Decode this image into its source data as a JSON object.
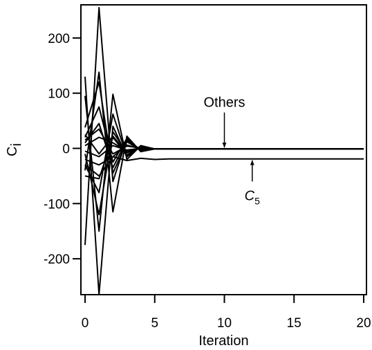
{
  "chart_data": {
    "type": "line",
    "title": "",
    "xlabel": "Iteration",
    "ylabel": "C",
    "ylabel_sub": "i",
    "xlim": [
      -0.3,
      20.2
    ],
    "ylim": [
      -265,
      260
    ],
    "xticks": [
      0,
      5,
      10,
      15,
      20
    ],
    "yticks": [
      -200,
      -100,
      0,
      100,
      200
    ],
    "grid": false,
    "legend": "none",
    "line_color": "#000000",
    "series": [
      {
        "x": [
          0,
          1,
          2,
          3,
          4,
          5,
          20
        ],
        "y": [
          -175,
          255,
          -60,
          18,
          -4,
          -1,
          -1
        ]
      },
      {
        "x": [
          0,
          1,
          2,
          3,
          4,
          5,
          20
        ],
        "y": [
          130,
          -265,
          40,
          -15,
          3,
          -1,
          -1
        ]
      },
      {
        "x": [
          0,
          1,
          2,
          3,
          4,
          5,
          20
        ],
        "y": [
          -40,
          138,
          -115,
          22,
          -6,
          -1,
          -1
        ]
      },
      {
        "x": [
          0,
          1,
          2,
          3,
          4,
          5,
          20
        ],
        "y": [
          95,
          -150,
          98,
          -20,
          5,
          -1,
          -1
        ]
      },
      {
        "x": [
          0,
          1,
          2,
          3,
          4,
          5,
          20
        ],
        "y": [
          38,
          120,
          -45,
          12,
          -3,
          -1,
          -1
        ]
      },
      {
        "x": [
          0,
          1,
          2,
          3,
          4,
          5,
          20
        ],
        "y": [
          -30,
          -80,
          62,
          -15,
          4,
          -1,
          -1
        ]
      },
      {
        "x": [
          0,
          1,
          2,
          3,
          4,
          5,
          20
        ],
        "y": [
          20,
          75,
          -25,
          18,
          -4,
          -1,
          -1
        ]
      },
      {
        "x": [
          0,
          1,
          2,
          3,
          4,
          5,
          20
        ],
        "y": [
          -10,
          -120,
          30,
          -8,
          2,
          -1,
          -1
        ]
      },
      {
        "x": [
          0,
          1,
          2,
          3,
          4,
          5,
          20
        ],
        "y": [
          10,
          45,
          -35,
          15,
          -3,
          -1,
          -1
        ]
      },
      {
        "x": [
          0,
          1,
          2,
          3,
          4,
          5,
          20
        ],
        "y": [
          -50,
          -55,
          20,
          -12,
          3,
          -1,
          -1
        ]
      },
      {
        "x": [
          0,
          1,
          2,
          3,
          4,
          5,
          20
        ],
        "y": [
          5,
          20,
          10,
          -5,
          1,
          -1,
          -1
        ]
      },
      {
        "x": [
          0,
          1,
          2,
          3,
          4,
          5,
          20
        ],
        "y": [
          -20,
          -30,
          -15,
          6,
          -1,
          -1,
          -1
        ]
      },
      {
        "x": [
          0,
          1,
          2,
          3,
          4,
          5,
          20
        ],
        "y": [
          15,
          35,
          -10,
          4,
          1,
          -1,
          -1
        ]
      },
      {
        "x": [
          0,
          1,
          2,
          3,
          4,
          5,
          20
        ],
        "y": [
          -5,
          -15,
          5,
          -3,
          0,
          -1,
          -1
        ]
      },
      {
        "x": [
          0,
          1,
          2,
          3,
          4,
          5,
          6,
          20
        ],
        "y": [
          -30,
          -50,
          -15,
          -22,
          -18,
          -20,
          -19,
          -19
        ]
      },
      {
        "x": [
          0,
          1,
          2,
          3,
          4,
          5,
          20
        ],
        "y": [
          25,
          -10,
          22,
          -8,
          2,
          -1,
          -1
        ]
      }
    ],
    "annotations": [
      {
        "text": "Others",
        "arrow_from": [
          10,
          65
        ],
        "arrow_to": [
          10,
          -1
        ]
      },
      {
        "text": "C",
        "subscript": "5",
        "italic": true,
        "arrow_from": [
          12,
          -60
        ],
        "arrow_to": [
          12,
          -19
        ]
      }
    ]
  }
}
